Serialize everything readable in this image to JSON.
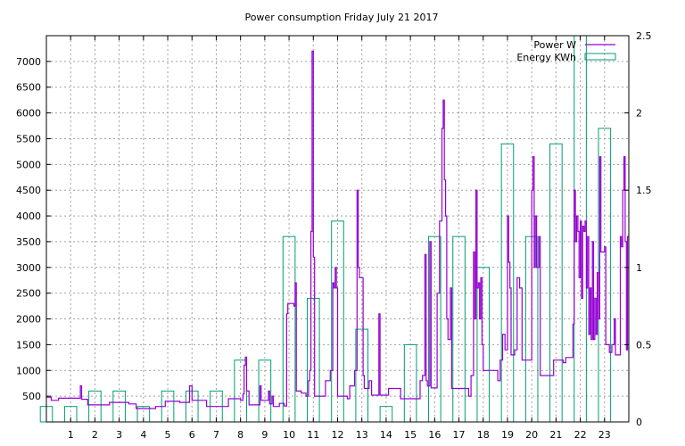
{
  "chart_data": {
    "type": "bar+line",
    "title": "Power consumption Friday July 21 2017",
    "legend_position": "top-right",
    "grid": true,
    "x": {
      "range": [
        0,
        24
      ],
      "ticks": [
        1,
        2,
        3,
        4,
        5,
        6,
        7,
        8,
        9,
        10,
        11,
        12,
        13,
        14,
        15,
        16,
        17,
        18,
        19,
        20,
        21,
        22,
        23
      ]
    },
    "y_left": {
      "range": [
        0,
        7500
      ],
      "ticks": [
        500,
        1000,
        1500,
        2000,
        2500,
        3000,
        3500,
        4000,
        4500,
        5000,
        5500,
        6000,
        6500,
        7000
      ]
    },
    "y_right": {
      "range": [
        0,
        2.5
      ],
      "ticks": [
        "0",
        "0.5",
        "1",
        "1.5",
        "2",
        "2.5"
      ],
      "tick_values": [
        0,
        0.5,
        1,
        1.5,
        2,
        2.5
      ]
    },
    "series": [
      {
        "name": "Power W",
        "axis": "left",
        "color": "#9400d3",
        "style": "step",
        "points": [
          [
            0,
            480
          ],
          [
            0.2,
            420
          ],
          [
            0.5,
            460
          ],
          [
            1.3,
            460
          ],
          [
            1.4,
            700
          ],
          [
            1.45,
            440
          ],
          [
            1.6,
            440
          ],
          [
            1.7,
            330
          ],
          [
            2.5,
            330
          ],
          [
            2.6,
            380
          ],
          [
            3.2,
            380
          ],
          [
            3.4,
            350
          ],
          [
            3.7,
            260
          ],
          [
            4.3,
            260
          ],
          [
            4.5,
            300
          ],
          [
            4.9,
            400
          ],
          [
            5.5,
            380
          ],
          [
            5.8,
            380
          ],
          [
            5.9,
            700
          ],
          [
            6.0,
            420
          ],
          [
            6.3,
            420
          ],
          [
            6.6,
            300
          ],
          [
            7.3,
            300
          ],
          [
            7.5,
            450
          ],
          [
            8.0,
            420
          ],
          [
            8.1,
            540
          ],
          [
            8.15,
            1100
          ],
          [
            8.2,
            1260
          ],
          [
            8.25,
            600
          ],
          [
            8.35,
            330
          ],
          [
            8.7,
            330
          ],
          [
            8.8,
            700
          ],
          [
            8.85,
            420
          ],
          [
            9.1,
            420
          ],
          [
            9.15,
            600
          ],
          [
            9.2,
            350
          ],
          [
            9.3,
            500
          ],
          [
            9.35,
            300
          ],
          [
            9.5,
            300
          ],
          [
            9.6,
            360
          ],
          [
            9.8,
            310
          ],
          [
            9.9,
            2100
          ],
          [
            9.95,
            2300
          ],
          [
            10.2,
            2250
          ],
          [
            10.25,
            2700
          ],
          [
            10.3,
            600
          ],
          [
            10.5,
            560
          ],
          [
            10.7,
            500
          ],
          [
            10.8,
            800
          ],
          [
            10.85,
            1000
          ],
          [
            10.9,
            3700
          ],
          [
            10.95,
            7200
          ],
          [
            11.0,
            3200
          ],
          [
            11.05,
            500
          ],
          [
            11.4,
            500
          ],
          [
            11.5,
            800
          ],
          [
            11.7,
            1000
          ],
          [
            11.8,
            2700
          ],
          [
            11.85,
            2600
          ],
          [
            11.9,
            3000
          ],
          [
            11.95,
            2600
          ],
          [
            12.0,
            500
          ],
          [
            12.4,
            450
          ],
          [
            12.5,
            700
          ],
          [
            12.7,
            1000
          ],
          [
            12.8,
            4500
          ],
          [
            12.85,
            3000
          ],
          [
            12.9,
            2800
          ],
          [
            13.0,
            2800
          ],
          [
            13.05,
            900
          ],
          [
            13.1,
            650
          ],
          [
            13.2,
            650
          ],
          [
            13.3,
            800
          ],
          [
            13.4,
            520
          ],
          [
            13.6,
            520
          ],
          [
            13.7,
            2100
          ],
          [
            13.75,
            520
          ],
          [
            14.0,
            520
          ],
          [
            14.1,
            650
          ],
          [
            14.5,
            650
          ],
          [
            14.6,
            450
          ],
          [
            15.3,
            450
          ],
          [
            15.4,
            800
          ],
          [
            15.5,
            900
          ],
          [
            15.6,
            3250
          ],
          [
            15.65,
            800
          ],
          [
            15.7,
            700
          ],
          [
            15.8,
            3500
          ],
          [
            15.85,
            660
          ],
          [
            16.0,
            660
          ],
          [
            16.1,
            2500
          ],
          [
            16.2,
            3900
          ],
          [
            16.3,
            5700
          ],
          [
            16.35,
            6250
          ],
          [
            16.4,
            4700
          ],
          [
            16.45,
            4000
          ],
          [
            16.5,
            2000
          ],
          [
            16.55,
            1600
          ],
          [
            16.6,
            1600
          ],
          [
            16.65,
            2600
          ],
          [
            16.7,
            650
          ],
          [
            17.3,
            650
          ],
          [
            17.4,
            500
          ],
          [
            17.5,
            900
          ],
          [
            17.6,
            3300
          ],
          [
            17.65,
            2000
          ],
          [
            17.7,
            4500
          ],
          [
            17.75,
            2600
          ],
          [
            17.8,
            2700
          ],
          [
            17.85,
            2000
          ],
          [
            17.9,
            2800
          ],
          [
            17.95,
            1500
          ],
          [
            18.0,
            1000
          ],
          [
            18.5,
            1000
          ],
          [
            18.6,
            800
          ],
          [
            18.7,
            1200
          ],
          [
            18.8,
            1700
          ],
          [
            18.9,
            1400
          ],
          [
            19.0,
            4000
          ],
          [
            19.05,
            3100
          ],
          [
            19.1,
            2600
          ],
          [
            19.15,
            1300
          ],
          [
            19.3,
            1400
          ],
          [
            19.4,
            2800
          ],
          [
            19.5,
            2600
          ],
          [
            19.6,
            1200
          ],
          [
            19.9,
            1200
          ],
          [
            20.0,
            4500
          ],
          [
            20.05,
            5150
          ],
          [
            20.1,
            3000
          ],
          [
            20.15,
            4000
          ],
          [
            20.2,
            3000
          ],
          [
            20.3,
            3600
          ],
          [
            20.35,
            900
          ],
          [
            20.8,
            900
          ],
          [
            20.9,
            1200
          ],
          [
            21.2,
            1200
          ],
          [
            21.3,
            1150
          ],
          [
            21.4,
            1250
          ],
          [
            21.6,
            1250
          ],
          [
            21.7,
            1900
          ],
          [
            21.75,
            4500
          ],
          [
            21.8,
            3500
          ],
          [
            21.85,
            4000
          ],
          [
            21.9,
            3700
          ],
          [
            21.95,
            2800
          ],
          [
            22.0,
            3900
          ],
          [
            22.05,
            2400
          ],
          [
            22.1,
            3800
          ],
          [
            22.15,
            3700
          ],
          [
            22.2,
            3900
          ],
          [
            22.25,
            2600
          ],
          [
            22.3,
            3600
          ],
          [
            22.35,
            1700
          ],
          [
            22.4,
            2600
          ],
          [
            22.45,
            1600
          ],
          [
            22.5,
            3500
          ],
          [
            22.55,
            1600
          ],
          [
            22.6,
            2400
          ],
          [
            22.65,
            1700
          ],
          [
            22.7,
            2900
          ],
          [
            22.75,
            2000
          ],
          [
            22.8,
            5150
          ],
          [
            22.85,
            3300
          ],
          [
            22.9,
            3300
          ],
          [
            23.0,
            3400
          ],
          [
            23.05,
            1500
          ],
          [
            23.2,
            1350
          ],
          [
            23.3,
            1500
          ],
          [
            23.4,
            2000
          ],
          [
            23.45,
            1300
          ],
          [
            23.6,
            1300
          ],
          [
            23.65,
            3600
          ],
          [
            23.7,
            3400
          ],
          [
            23.75,
            4500
          ],
          [
            23.8,
            5150
          ],
          [
            23.85,
            3500
          ],
          [
            23.9,
            1400
          ],
          [
            23.95,
            3600
          ],
          [
            24.0,
            3600
          ]
        ]
      },
      {
        "name": "Energy KWh",
        "axis": "right",
        "color": "#009e73",
        "style": "boxes",
        "bars": [
          [
            0,
            0.1
          ],
          [
            1,
            0.1
          ],
          [
            2,
            0.2
          ],
          [
            3,
            0.2
          ],
          [
            4,
            0.1
          ],
          [
            5,
            0.2
          ],
          [
            6,
            0.2
          ],
          [
            7,
            0.2
          ],
          [
            8,
            0.4
          ],
          [
            9,
            0.4
          ],
          [
            10,
            1.2
          ],
          [
            11,
            0.8
          ],
          [
            12,
            1.3
          ],
          [
            13,
            0.6
          ],
          [
            14,
            0.1
          ],
          [
            15,
            0.5
          ],
          [
            16,
            1.2
          ],
          [
            17,
            1.2
          ],
          [
            18,
            1.0
          ],
          [
            19,
            1.8
          ],
          [
            20,
            1.2
          ],
          [
            21,
            1.8
          ],
          [
            22,
            2.5
          ],
          [
            23,
            1.9
          ]
        ]
      }
    ]
  }
}
